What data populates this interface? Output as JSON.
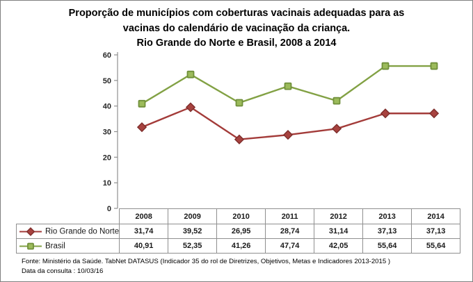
{
  "title": {
    "line1": "Proporção de municípios com coberturas vacinais adequadas para as",
    "line2": "vacinas do calendário de vacinação da criança.",
    "line3": "Rio Grande do Norte e Brasil, 2008 a 2014"
  },
  "chart_data": {
    "type": "line",
    "categories": [
      "2008",
      "2009",
      "2010",
      "2011",
      "2012",
      "2013",
      "2014"
    ],
    "series": [
      {
        "name": "Rio Grande do Norte",
        "values": [
          31.74,
          39.52,
          26.95,
          28.74,
          31.14,
          37.13,
          37.13
        ],
        "display_values": [
          "31,74",
          "39,52",
          "26,95",
          "28,74",
          "31,14",
          "37,13",
          "37,13"
        ],
        "color": "#A33B39",
        "marker": "diamond",
        "marker_fill": "#A7423F",
        "marker_stroke": "#7E2D2B"
      },
      {
        "name": "Brasil",
        "values": [
          40.91,
          52.35,
          41.26,
          47.74,
          42.05,
          55.64,
          55.64
        ],
        "display_values": [
          "40,91",
          "52,35",
          "41,26",
          "47,74",
          "42,05",
          "55,64",
          "55,64"
        ],
        "color": "#82A144",
        "marker": "square",
        "marker_fill": "#9CBB5B",
        "marker_stroke": "#6F8F3A"
      }
    ],
    "xlabel": "",
    "ylabel": "",
    "ylim": [
      0,
      60
    ],
    "yticks": [
      0,
      10,
      20,
      30,
      40,
      50,
      60
    ],
    "grid": false,
    "legend_position": "data-table-left",
    "axis_color": "#8f8f8f"
  },
  "footer": {
    "source": "Fonte: Ministério da Saúde. TabNet DATASUS (Indicador 35 do rol de Diretrizes, Objetivos, Metas e Indicadores 2013-2015 )",
    "date": "Data da consulta : 10/03/16"
  }
}
